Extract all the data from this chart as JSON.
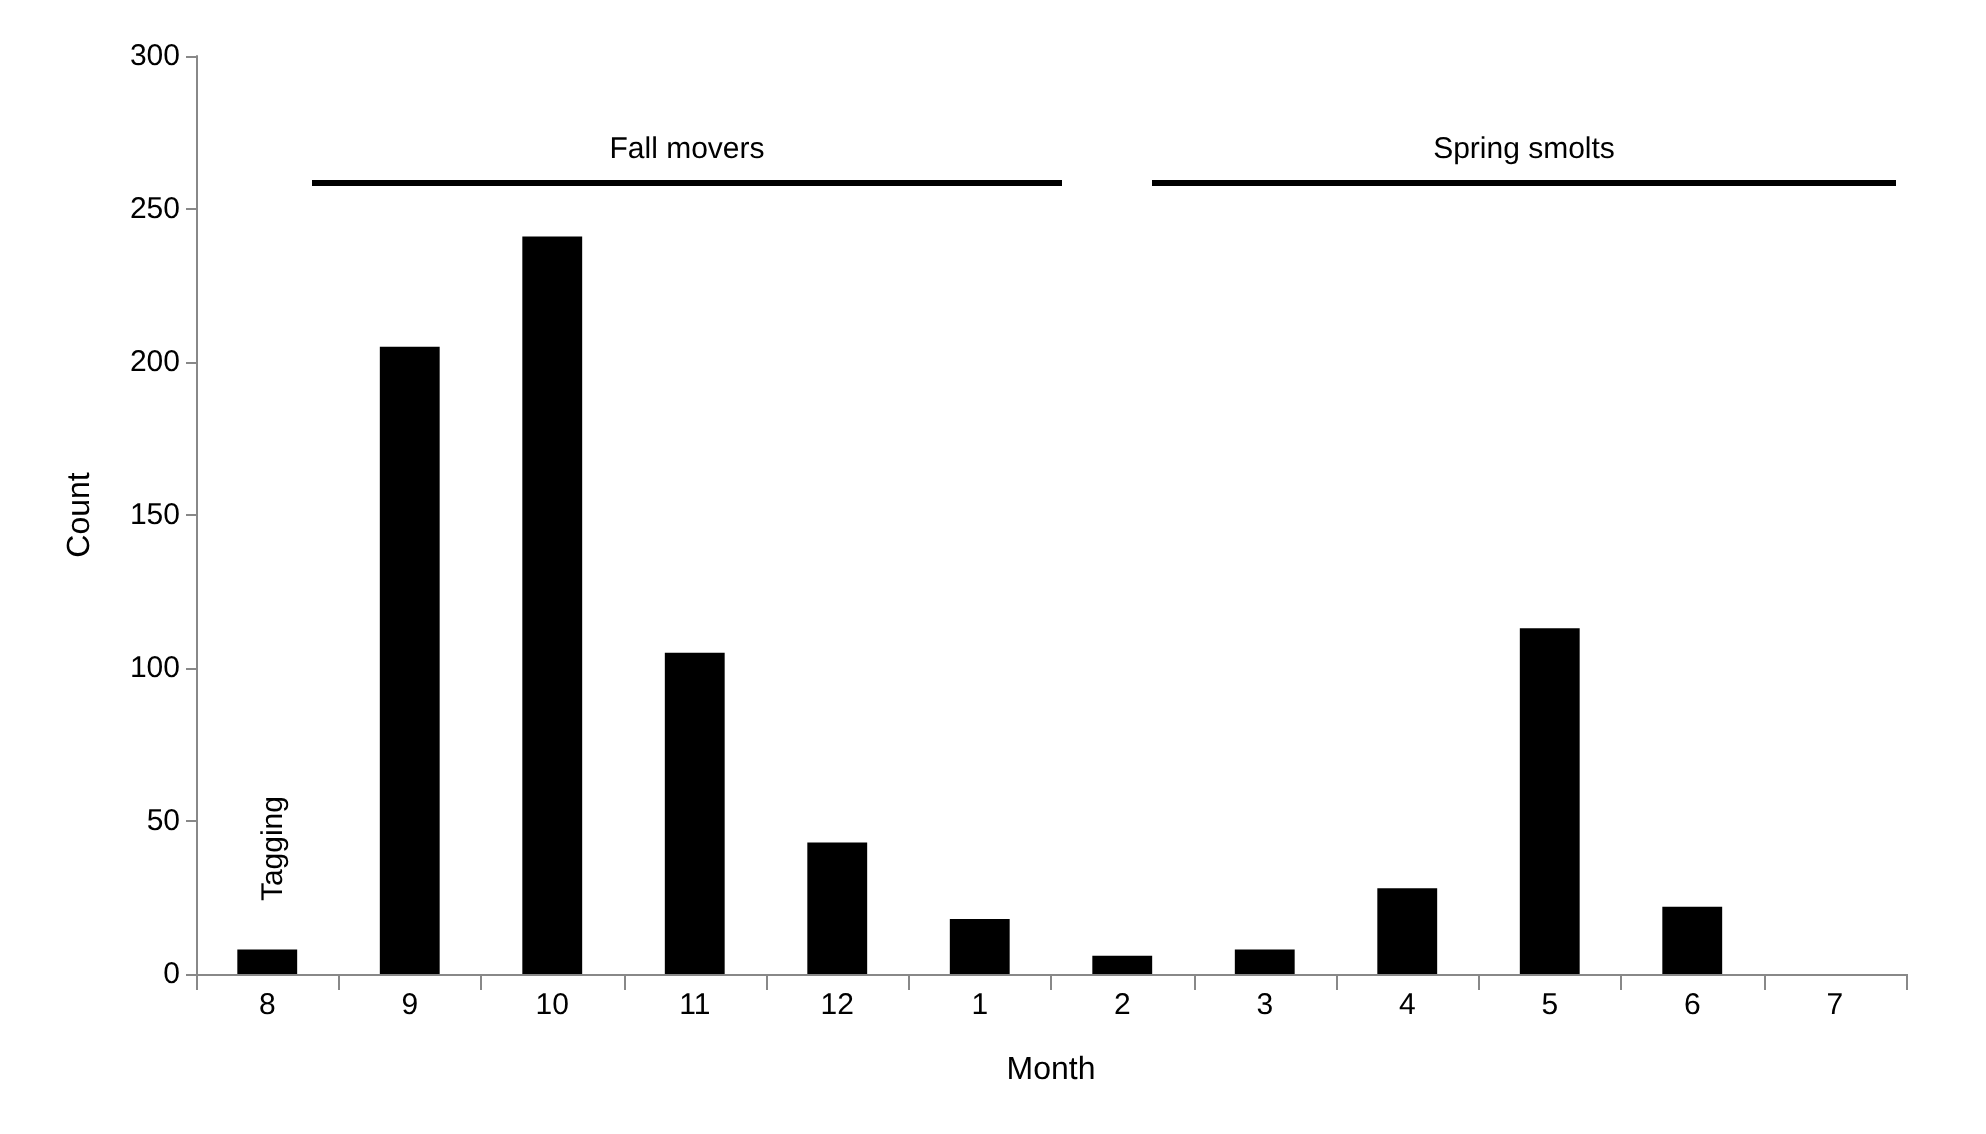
{
  "chart_data": {
    "type": "bar",
    "xlabel": "Month",
    "ylabel": "Count",
    "categories": [
      "8",
      "9",
      "10",
      "11",
      "12",
      "1",
      "2",
      "3",
      "4",
      "5",
      "6",
      "7"
    ],
    "values": [
      8,
      205,
      241,
      105,
      43,
      18,
      6,
      8,
      28,
      113,
      22,
      0
    ],
    "color": "#000000",
    "ylim": [
      0,
      300
    ],
    "yticks": [
      0,
      50,
      100,
      150,
      200,
      250,
      300
    ],
    "grid": false,
    "annotations": [
      "Fall movers",
      "Spring smolts",
      "Tagging"
    ]
  }
}
